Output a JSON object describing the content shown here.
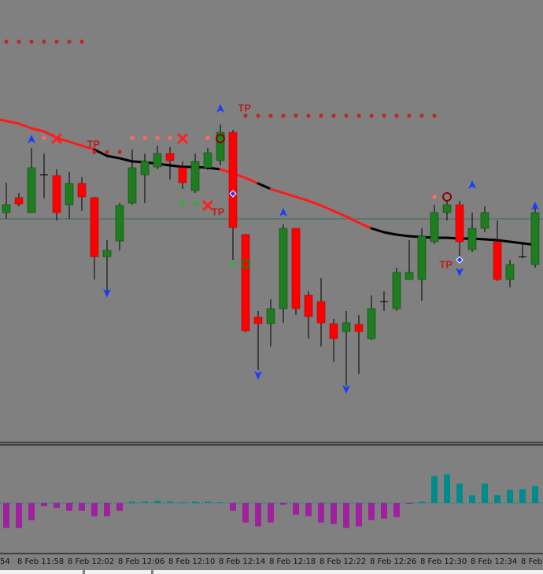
{
  "chart_data": {
    "type": "candlestick",
    "ylim": [
      0,
      560
    ],
    "categories": [
      null,
      "8 Feb 11:58",
      null,
      null,
      null,
      "8 Feb 12:02",
      null,
      null,
      null,
      "8 Feb 12:06",
      null,
      null,
      null,
      "8 Feb 12:10",
      null,
      null,
      null,
      "8 Feb 12:14",
      null,
      null,
      null,
      "8 Feb 12:18",
      null,
      null,
      null,
      "8 Feb 12:22",
      null,
      null,
      null,
      "8 Feb 12:26",
      null,
      null,
      null,
      "8 Feb 12:30",
      null,
      null,
      null,
      "8 Feb 12:34",
      null,
      null,
      null,
      "8 Feb",
      null
    ],
    "left_edge_label": "54",
    "up_color": "#1e7d1e",
    "down_color": "#ff0000",
    "open": [
      290,
      309,
      290,
      338,
      337,
      300,
      327,
      309,
      234,
      254,
      302,
      338,
      348,
      365,
      347,
      318,
      347,
      356,
      392,
      262,
      157,
      149,
      168,
      270,
      185,
      177,
      149,
      139,
      148,
      130,
      177,
      168,
      205,
      205,
      253,
      290,
      300,
      243,
      270,
      253,
      205,
      234,
      224
    ],
    "high": [
      328,
      315,
      372,
      365,
      345,
      342,
      335,
      310,
      255,
      302,
      370,
      365,
      375,
      373,
      355,
      365,
      372,
      402,
      395,
      263,
      165,
      180,
      275,
      270,
      190,
      207,
      155,
      165,
      160,
      185,
      190,
      220,
      255,
      270,
      300,
      305,
      305,
      290,
      298,
      280,
      230,
      250,
      298
    ],
    "low": [
      282,
      298,
      290,
      308,
      280,
      282,
      292,
      205,
      190,
      242,
      300,
      302,
      345,
      332,
      320,
      315,
      344,
      350,
      230,
      138,
      90,
      120,
      150,
      160,
      130,
      120,
      100,
      70,
      85,
      128,
      165,
      165,
      205,
      178,
      250,
      280,
      230,
      240,
      265,
      203,
      195,
      232,
      220
    ],
    "close": [
      300,
      301,
      347,
      338,
      290,
      327,
      310,
      234,
      242,
      299,
      347,
      355,
      365,
      356,
      328,
      355,
      366,
      392,
      271,
      140,
      149,
      168,
      270,
      168,
      158,
      150,
      130,
      150,
      139,
      168,
      177,
      214,
      214,
      260,
      290,
      300,
      253,
      270,
      290,
      205,
      224,
      234,
      290
    ],
    "level_line": {
      "value": 282,
      "color": "#3d6b55"
    },
    "moving_average": {
      "values": [
        408,
        403,
        397,
        393,
        385,
        380,
        375,
        370,
        362,
        359,
        355,
        354,
        352,
        350,
        348,
        348,
        347,
        345,
        340,
        334,
        327,
        320,
        315,
        310,
        305,
        299,
        292,
        285,
        277,
        270,
        265,
        262,
        260,
        259,
        258,
        258,
        257,
        257,
        256,
        255,
        253,
        251,
        249
      ],
      "segment_colors": [
        "#ff1a1a",
        "#ff1a1a",
        "#ff1a1a",
        "#ff1a1a",
        "#ff1a1a",
        "#ff1a1a",
        "#ff1a1a",
        "#000000",
        "#000000",
        "#000000",
        "#000000",
        "#000000",
        "#000000",
        "#000000",
        "#000000",
        "#000000",
        "#000000",
        "#ff1a1a",
        "#ff1a1a",
        "#ff1a1a",
        "#000000",
        "#ff1a1a",
        "#ff1a1a",
        "#ff1a1a",
        "#ff1a1a",
        "#ff1a1a",
        "#ff1a1a",
        "#ff1a1a",
        "#ff1a1a",
        "#000000",
        "#000000",
        "#000000",
        "#000000",
        "#000000",
        "#000000",
        "#000000",
        "#000000",
        "#000000",
        "#000000",
        "#000000",
        "#000000",
        "#000000"
      ]
    },
    "markers": [
      {
        "shape": "arrow-up",
        "color": "#1a3cff",
        "points": [
          [
            2,
            383
          ],
          [
            17,
            422
          ],
          [
            22,
            290
          ],
          [
            37,
            325
          ],
          [
            42,
            298
          ]
        ]
      },
      {
        "shape": "arrow-down",
        "color": "#1a3cff",
        "points": [
          [
            8,
            188
          ],
          [
            20,
            84
          ],
          [
            27,
            66
          ],
          [
            36,
            215
          ]
        ]
      },
      {
        "shape": "cross",
        "color": "#ff2020",
        "points": [
          [
            4,
            384
          ],
          [
            14,
            384
          ],
          [
            16,
            299
          ]
        ]
      },
      {
        "shape": "dot",
        "color": "#c02828",
        "points": [
          [
            0,
            507
          ],
          [
            1,
            507
          ],
          [
            2,
            507
          ],
          [
            3,
            507
          ],
          [
            4,
            507
          ],
          [
            5,
            507
          ],
          [
            6,
            507
          ],
          [
            7,
            367
          ],
          [
            8,
            367
          ],
          [
            9,
            367
          ],
          [
            19,
            413
          ],
          [
            20,
            413
          ],
          [
            21,
            413
          ],
          [
            22,
            413
          ],
          [
            23,
            413
          ],
          [
            24,
            413
          ],
          [
            25,
            413
          ],
          [
            26,
            413
          ],
          [
            27,
            413
          ],
          [
            28,
            413
          ],
          [
            29,
            413
          ],
          [
            30,
            413
          ],
          [
            31,
            413
          ],
          [
            32,
            413
          ],
          [
            33,
            413
          ],
          [
            34,
            413
          ]
        ]
      },
      {
        "shape": "dot",
        "color": "#ff6a5a",
        "points": [
          [
            3,
            385
          ],
          [
            10,
            385
          ],
          [
            11,
            385
          ],
          [
            12,
            385
          ],
          [
            13,
            385
          ],
          [
            16,
            385
          ],
          [
            34,
            310
          ]
        ]
      },
      {
        "shape": "dot",
        "color": "#22bb22",
        "points": [
          [
            14,
            302
          ],
          [
            15,
            302
          ],
          [
            18,
            225
          ]
        ]
      },
      {
        "shape": "ring",
        "color": "#8b0000",
        "points": [
          [
            17,
            384
          ],
          [
            35,
            310
          ]
        ]
      },
      {
        "shape": "ring",
        "color": "#1e7d1e",
        "points": [
          [
            19,
            225
          ]
        ]
      },
      {
        "shape": "diamond",
        "color": "#1a3cff",
        "points": [
          [
            18,
            314
          ],
          [
            36,
            230
          ]
        ]
      }
    ],
    "annotations": [
      {
        "text": "TP",
        "index": 6.4,
        "value": 376
      },
      {
        "text": "TP",
        "index": 18.4,
        "value": 422
      },
      {
        "text": "TP",
        "index": 16.3,
        "value": 290
      },
      {
        "text": "TP",
        "index": 34.4,
        "value": 223
      }
    ],
    "oscillator": {
      "type": "bar",
      "ylim": [
        -65,
        75
      ],
      "positive_color": "#008b8b",
      "negative_color": "#a020a0",
      "values": [
        -32,
        -32,
        -22,
        -4,
        -6,
        -10,
        -10,
        -17,
        -17,
        -10,
        2,
        2,
        3,
        2,
        1,
        2,
        2,
        1,
        -10,
        -25,
        -30,
        -25,
        -2,
        -15,
        -17,
        -25,
        -27,
        -32,
        -30,
        -22,
        -20,
        -18,
        -1,
        2,
        35,
        37,
        25,
        10,
        25,
        10,
        17,
        18,
        22
      ]
    }
  }
}
